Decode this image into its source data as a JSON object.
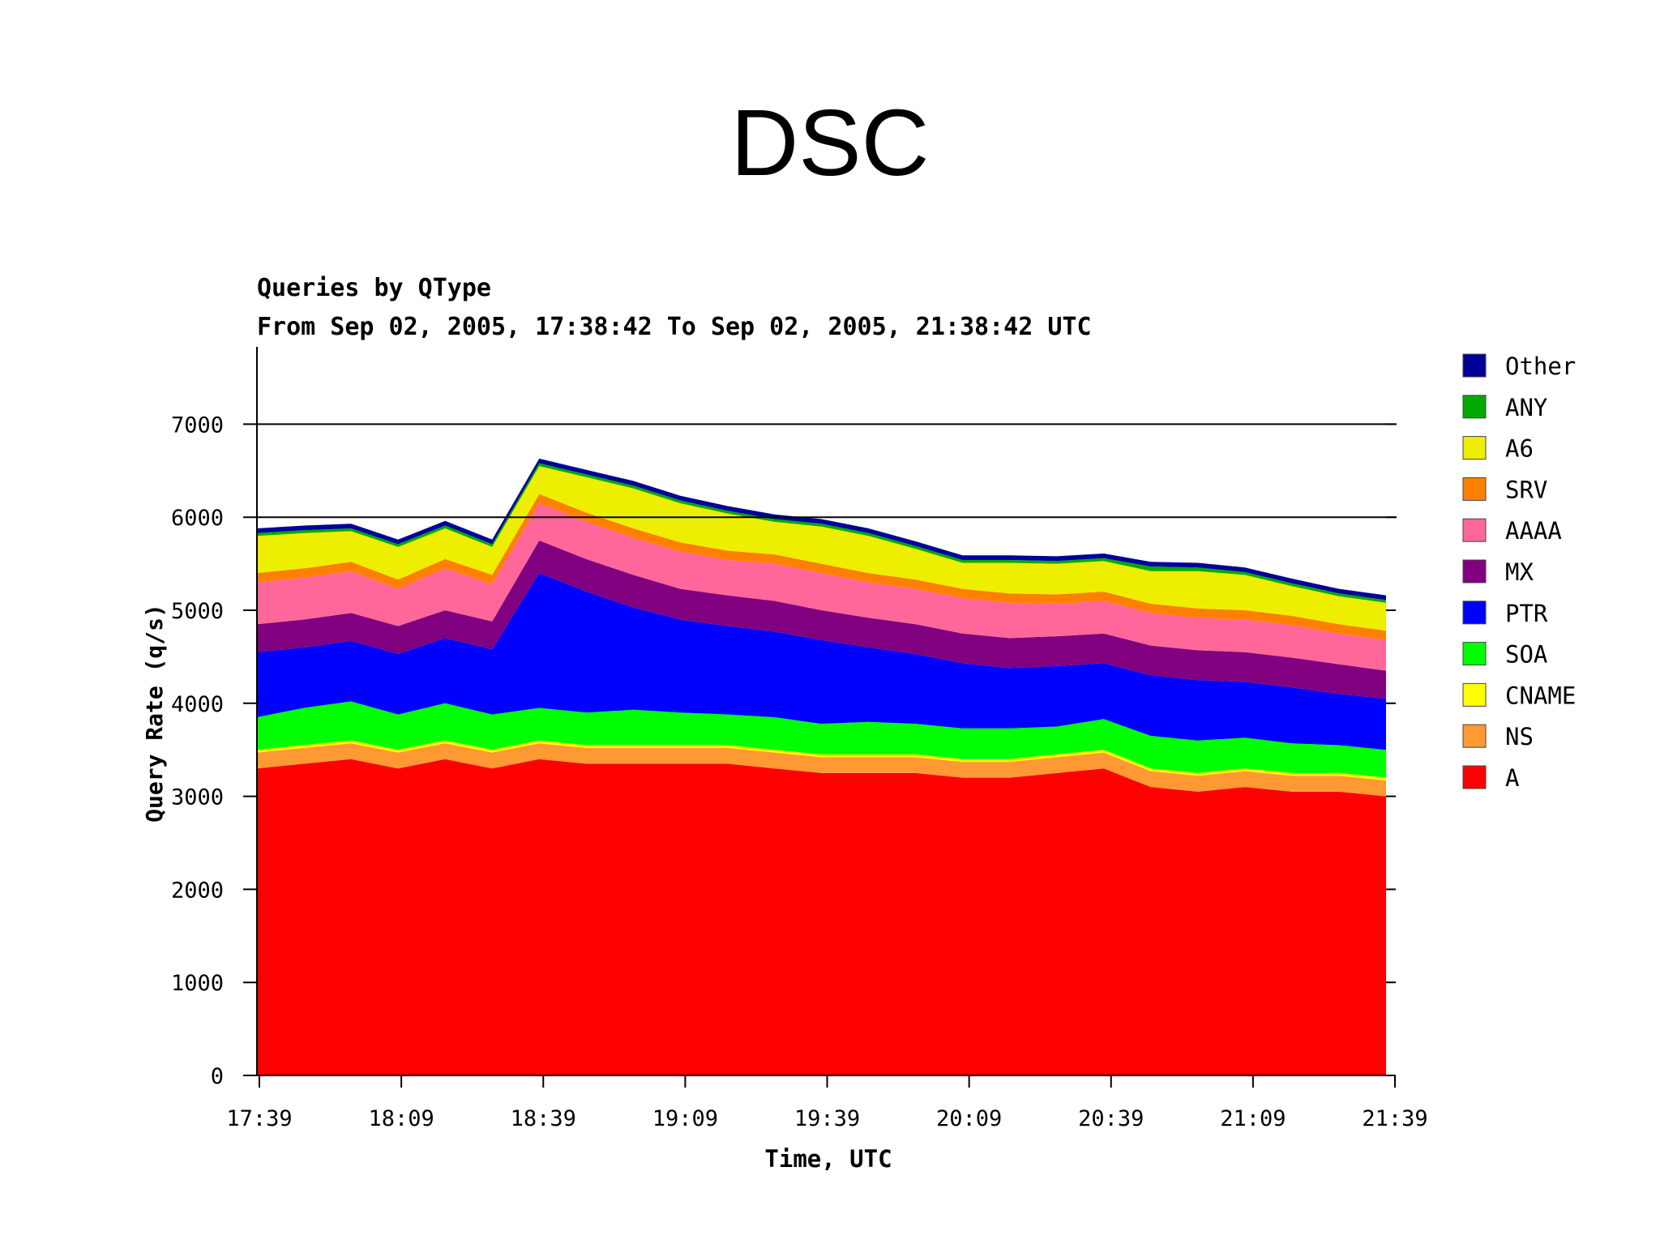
{
  "slide": {
    "title": "DSC"
  },
  "chart_data": {
    "type": "area",
    "stacked": true,
    "title": "Queries by QType",
    "subtitle": "From Sep 02, 2005, 17:38:42 To Sep 02, 2005, 21:38:42 UTC",
    "xlabel": "Time, UTC",
    "ylabel": "Query Rate (q/s)",
    "ylim": [
      0,
      7500
    ],
    "yticks": [
      0,
      1000,
      2000,
      3000,
      4000,
      5000,
      6000,
      7000
    ],
    "ytick_labels": [
      "0",
      "1000",
      "2000",
      "3000",
      "4000",
      "5000",
      "6000",
      "7000"
    ],
    "xlim": [
      "17:39",
      "21:39"
    ],
    "xticks": [
      "17:39",
      "18:09",
      "18:39",
      "19:09",
      "19:39",
      "20:09",
      "20:39",
      "21:09",
      "21:39"
    ],
    "gridlines_y": [
      6000,
      7000
    ],
    "legend_position": "right",
    "x": [
      "17:39",
      "17:49",
      "17:59",
      "18:09",
      "18:19",
      "18:29",
      "18:39",
      "18:49",
      "18:59",
      "19:09",
      "19:19",
      "19:29",
      "19:39",
      "19:49",
      "19:59",
      "20:09",
      "20:19",
      "20:29",
      "20:39",
      "20:49",
      "20:59",
      "21:09",
      "21:19",
      "21:29",
      "21:39"
    ],
    "series": [
      {
        "name": "A",
        "color": "#ff0000",
        "values": [
          3300,
          3350,
          3400,
          3300,
          3400,
          3300,
          3400,
          3350,
          3350,
          3350,
          3350,
          3300,
          3250,
          3250,
          3250,
          3200,
          3200,
          3250,
          3300,
          3100,
          3050,
          3100,
          3050,
          3050,
          3000
        ]
      },
      {
        "name": "NS",
        "color": "#ff9933",
        "values": [
          170,
          170,
          170,
          170,
          170,
          170,
          170,
          170,
          170,
          170,
          170,
          170,
          170,
          170,
          170,
          170,
          170,
          170,
          170,
          170,
          170,
          170,
          170,
          170,
          170
        ]
      },
      {
        "name": "CNAME",
        "color": "#ffff00",
        "values": [
          30,
          30,
          30,
          30,
          30,
          30,
          30,
          30,
          30,
          30,
          30,
          30,
          30,
          30,
          30,
          30,
          30,
          30,
          30,
          30,
          30,
          30,
          30,
          30,
          30
        ]
      },
      {
        "name": "SOA",
        "color": "#00ff00",
        "values": [
          350,
          400,
          420,
          380,
          400,
          380,
          350,
          350,
          380,
          350,
          330,
          350,
          330,
          350,
          330,
          330,
          330,
          300,
          330,
          350,
          350,
          330,
          320,
          300,
          300
        ]
      },
      {
        "name": "PTR",
        "color": "#0000ff",
        "values": [
          700,
          650,
          650,
          650,
          700,
          700,
          1450,
          1300,
          1100,
          1000,
          950,
          920,
          900,
          800,
          750,
          700,
          650,
          650,
          600,
          650,
          650,
          600,
          600,
          550,
          550
        ]
      },
      {
        "name": "MX",
        "color": "#800080",
        "values": [
          300,
          300,
          300,
          300,
          300,
          300,
          350,
          350,
          350,
          330,
          330,
          330,
          320,
          320,
          320,
          320,
          320,
          320,
          320,
          320,
          320,
          320,
          320,
          320,
          300
        ]
      },
      {
        "name": "AAAA",
        "color": "#ff6699",
        "values": [
          450,
          450,
          450,
          400,
          450,
          400,
          400,
          400,
          400,
          400,
          380,
          400,
          400,
          380,
          380,
          380,
          380,
          350,
          350,
          350,
          350,
          350,
          350,
          330,
          330
        ]
      },
      {
        "name": "SRV",
        "color": "#ff8000",
        "values": [
          100,
          100,
          100,
          100,
          100,
          100,
          100,
          100,
          100,
          100,
          100,
          100,
          100,
          100,
          100,
          100,
          100,
          100,
          100,
          100,
          100,
          100,
          100,
          100,
          100
        ]
      },
      {
        "name": "A6",
        "color": "#eeee00",
        "values": [
          400,
          380,
          330,
          350,
          330,
          300,
          300,
          380,
          430,
          420,
          400,
          350,
          400,
          400,
          330,
          280,
          330,
          330,
          330,
          350,
          400,
          380,
          320,
          300,
          300
        ]
      },
      {
        "name": "ANY",
        "color": "#00aa00",
        "values": [
          30,
          30,
          30,
          30,
          30,
          30,
          30,
          30,
          30,
          30,
          30,
          30,
          30,
          30,
          30,
          30,
          30,
          30,
          30,
          50,
          40,
          30,
          30,
          30,
          30
        ]
      },
      {
        "name": "Other",
        "color": "#000099",
        "values": [
          50,
          50,
          50,
          50,
          50,
          50,
          50,
          50,
          50,
          50,
          50,
          50,
          50,
          50,
          50,
          50,
          50,
          50,
          50,
          50,
          50,
          50,
          50,
          50,
          50
        ]
      }
    ],
    "legend_order": [
      "Other",
      "ANY",
      "A6",
      "SRV",
      "AAAA",
      "MX",
      "PTR",
      "SOA",
      "CNAME",
      "NS",
      "A"
    ]
  }
}
